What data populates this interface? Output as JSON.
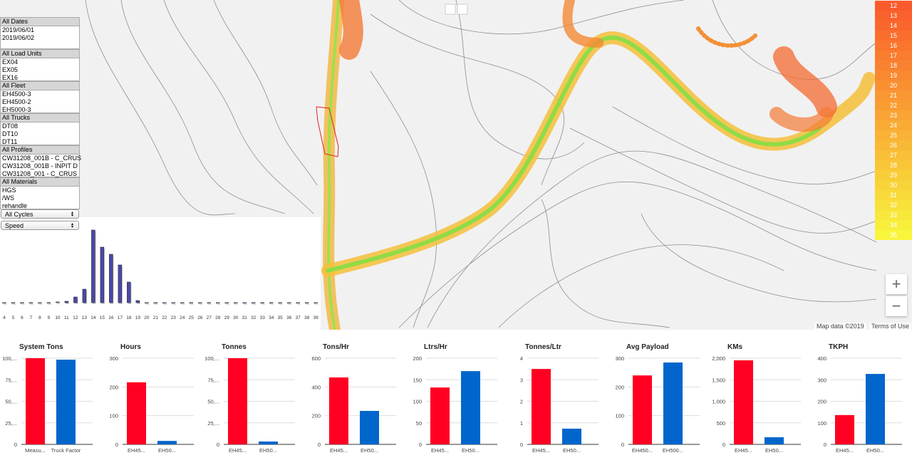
{
  "filters": [
    {
      "header": "All Dates",
      "items": [
        "2019/06/01",
        "2019/06/02"
      ]
    },
    {
      "header": "All Load Units",
      "items": [
        "EX04",
        "EX05",
        "EX16"
      ]
    },
    {
      "header": "All Fleet",
      "items": [
        "EH4500-3",
        "EH4500-2",
        "EH5000-3"
      ]
    },
    {
      "header": "All Trucks",
      "items": [
        "DT08",
        "DT10",
        "DT11"
      ]
    },
    {
      "header": "All Profiles",
      "items": [
        "CW31208_001B - C_CRUS",
        "CW31208_001B - INPIT D",
        "CW31208_001 - C_CRUS"
      ]
    },
    {
      "header": "All Materials",
      "items": [
        "HGS",
        "/WS",
        "rehandle"
      ]
    }
  ],
  "selects": [
    "All Cycles",
    "Speed"
  ],
  "speed_legend": {
    "labels": [
      12,
      13,
      14,
      15,
      16,
      17,
      18,
      19,
      20,
      21,
      22,
      23,
      24,
      25,
      26,
      27,
      28,
      29,
      30,
      31,
      32,
      33,
      34,
      35
    ],
    "gradient": [
      "#fa5a2b",
      "#f8f53d"
    ]
  },
  "map": {
    "attribution": "Map data ©2019",
    "terms": "Terms of Use",
    "zoom_in": "+",
    "zoom_out": "−"
  },
  "chart_data": [
    {
      "type": "histogram",
      "categories": [
        4,
        5,
        6,
        7,
        8,
        9,
        10,
        11,
        12,
        13,
        14,
        15,
        16,
        17,
        18,
        19,
        20,
        21,
        22,
        23,
        24,
        25,
        26,
        27,
        28,
        29,
        30,
        31,
        32,
        33,
        34,
        35,
        36,
        37,
        38,
        39
      ],
      "values": [
        0,
        0,
        0,
        0,
        0,
        0,
        1,
        2,
        8,
        19,
        102,
        78,
        68,
        53,
        29,
        3,
        0,
        0,
        0,
        0,
        0,
        0,
        0,
        0,
        0,
        0,
        0,
        0,
        0,
        0,
        0,
        0,
        0,
        0,
        0,
        0
      ],
      "color": "#4a48a8",
      "ylim": [
        0,
        105
      ]
    },
    {
      "type": "bar",
      "title": "System Tons",
      "categories": [
        "Measu...",
        "Truck Factor"
      ],
      "values": [
        100000,
        98300
      ],
      "colors": [
        "#ff0022",
        "#0066cc"
      ],
      "ylim": [
        0,
        100000
      ],
      "yticks": [
        0,
        {
          "value": 25000,
          "label": "25,..."
        },
        {
          "value": 50000,
          "label": "50,..."
        },
        {
          "value": 75000,
          "label": "75,..."
        },
        {
          "value": 100000,
          "label": "100,..."
        }
      ]
    },
    {
      "type": "bar",
      "title": "Hours",
      "categories": [
        "EH45...",
        "EH50..."
      ],
      "values": [
        216,
        12
      ],
      "colors": [
        "#ff0022",
        "#0066cc"
      ],
      "ylim": [
        0,
        300
      ],
      "yticks": [
        0,
        100,
        200,
        300
      ]
    },
    {
      "type": "bar",
      "title": "Tonnes",
      "categories": [
        "EH45...",
        "EH50..."
      ],
      "values": [
        100000,
        3300
      ],
      "colors": [
        "#ff0022",
        "#0066cc"
      ],
      "ylim": [
        0,
        100000
      ],
      "yticks": [
        0,
        {
          "value": 25000,
          "label": "25,..."
        },
        {
          "value": 50000,
          "label": "50,..."
        },
        {
          "value": 75000,
          "label": "75,..."
        },
        {
          "value": 100000,
          "label": "100,..."
        }
      ]
    },
    {
      "type": "bar",
      "title": "Tons/Hr",
      "categories": [
        "EH45...",
        "EH50..."
      ],
      "values": [
        466,
        233
      ],
      "colors": [
        "#ff0022",
        "#0066cc"
      ],
      "ylim": [
        0,
        600
      ],
      "yticks": [
        0,
        200,
        400,
        600
      ]
    },
    {
      "type": "bar",
      "title": "Ltrs/Hr",
      "categories": [
        "EH45...",
        "EH50..."
      ],
      "values": [
        132,
        170
      ],
      "colors": [
        "#ff0022",
        "#0066cc"
      ],
      "ylim": [
        0,
        200
      ],
      "yticks": [
        0,
        50,
        100,
        150,
        200
      ]
    },
    {
      "type": "bar",
      "title": "Tonnes/Ltr",
      "categories": [
        "EH45...",
        "EH50..."
      ],
      "values": [
        3.5,
        0.73
      ],
      "colors": [
        "#ff0022",
        "#0066cc"
      ],
      "ylim": [
        0,
        4
      ],
      "yticks": [
        0,
        1,
        2,
        3,
        4
      ]
    },
    {
      "type": "bar",
      "title": "Avg Payload",
      "categories": [
        "EH450...",
        "EH500..."
      ],
      "values": [
        240,
        285
      ],
      "colors": [
        "#ff0022",
        "#0066cc"
      ],
      "ylim": [
        0,
        300
      ],
      "yticks": [
        0,
        100,
        200,
        300
      ]
    },
    {
      "type": "bar",
      "title": "KMs",
      "categories": [
        "EH45...",
        "EH50..."
      ],
      "values": [
        1950,
        165
      ],
      "colors": [
        "#ff0022",
        "#0066cc"
      ],
      "ylim": [
        0,
        2000
      ],
      "yticks": [
        0,
        500,
        {
          "value": 1000,
          "label": "1,000"
        },
        {
          "value": 1500,
          "label": "1,500"
        },
        {
          "value": 2000,
          "label": "2,000"
        }
      ]
    },
    {
      "type": "bar",
      "title": "TKPH",
      "categories": [
        "EH45...",
        "EH50..."
      ],
      "values": [
        136,
        327
      ],
      "colors": [
        "#ff0022",
        "#0066cc"
      ],
      "ylim": [
        0,
        400
      ],
      "yticks": [
        0,
        100,
        200,
        300,
        400
      ]
    }
  ]
}
